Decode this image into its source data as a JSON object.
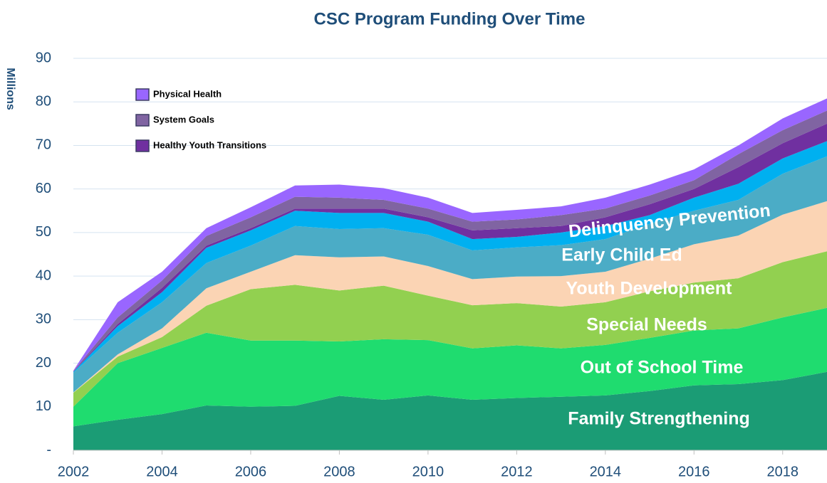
{
  "chart_data": {
    "type": "stacked_area",
    "title": "CSC Program Funding Over Time",
    "y_label": "Millions",
    "x": [
      2002,
      2003,
      2004,
      2005,
      2006,
      2007,
      2008,
      2009,
      2010,
      2011,
      2012,
      2013,
      2014,
      2015,
      2016,
      2017,
      2018,
      2019
    ],
    "xlim": [
      2002,
      2019
    ],
    "xticks": [
      2002,
      2004,
      2006,
      2008,
      2010,
      2012,
      2014,
      2016,
      2018
    ],
    "ylim": [
      0,
      90
    ],
    "yticks": [
      {
        "value": 0,
        "label": "-"
      },
      10,
      20,
      30,
      40,
      50,
      60,
      70,
      80,
      90
    ],
    "grid": true,
    "series": [
      {
        "name": "Family Strengthening",
        "color": "#1b9c75",
        "values": [
          5.5,
          7,
          8.3,
          10.3,
          10,
          10.2,
          12.5,
          11.6,
          12.6,
          11.6,
          12,
          12.3,
          12.6,
          13.6,
          14.9,
          15.2,
          16.1,
          18
        ]
      },
      {
        "name": "Out of School Time",
        "color": "#1fdc6f",
        "values": [
          4.5,
          13,
          15.2,
          16.7,
          15.2,
          15,
          12.5,
          13.9,
          12.7,
          11.8,
          12.1,
          11.1,
          11.6,
          12.2,
          12.6,
          12.8,
          14.4,
          14.7
        ]
      },
      {
        "name": "Special Needs",
        "color": "#92d050",
        "values": [
          3.2,
          1.5,
          2.5,
          6.2,
          11.8,
          12.8,
          11.7,
          12.3,
          10.2,
          9.9,
          9.7,
          9.6,
          9.8,
          10.7,
          11,
          11.5,
          12.7,
          13
        ]
      },
      {
        "name": "Youth Development",
        "color": "#fbd4b4",
        "values": [
          0.1,
          0.5,
          2,
          4,
          4,
          6.8,
          7.6,
          6.7,
          6.8,
          6,
          6.1,
          7,
          7,
          7.5,
          8.8,
          9.8,
          10.9,
          11.5
        ]
      },
      {
        "name": "Early Child Ed",
        "color": "#4bacc6",
        "values": [
          4.5,
          5,
          6,
          5.8,
          6,
          6.7,
          6.5,
          6.5,
          7.2,
          6.6,
          6.7,
          7.1,
          7.5,
          8,
          7.7,
          8.2,
          9.4,
          10.3
        ]
      },
      {
        "name": "Delinquency Prevention",
        "color": "#00b0f0",
        "values": [
          0.2,
          1.5,
          2.3,
          3.5,
          3.5,
          3.5,
          3.7,
          3.5,
          3,
          2.6,
          2.4,
          2.9,
          3,
          2,
          3,
          3.7,
          3.5,
          3.5
        ]
      },
      {
        "name": "Healthy Youth Transitions",
        "color": "#7030a0",
        "values": [
          0.1,
          0.5,
          1,
          0.5,
          0.5,
          0.5,
          1,
          1,
          1,
          2,
          2,
          1.5,
          2,
          2.5,
          2,
          3.8,
          3.5,
          4
        ]
      },
      {
        "name": "System Goals",
        "color": "#8064a2",
        "values": [
          0.1,
          1.5,
          1.7,
          2.2,
          2.5,
          2.7,
          2.5,
          2,
          2,
          2,
          2,
          2.5,
          2,
          2,
          2,
          3,
          3,
          3
        ]
      },
      {
        "name": "Physical Health",
        "color": "#9966ff",
        "values": [
          0.1,
          3.5,
          2,
          1.8,
          2.3,
          2.6,
          3,
          2.7,
          2.5,
          2,
          2.2,
          2,
          2.5,
          2.5,
          2.5,
          2,
          2.7,
          2.8
        ]
      }
    ]
  }
}
